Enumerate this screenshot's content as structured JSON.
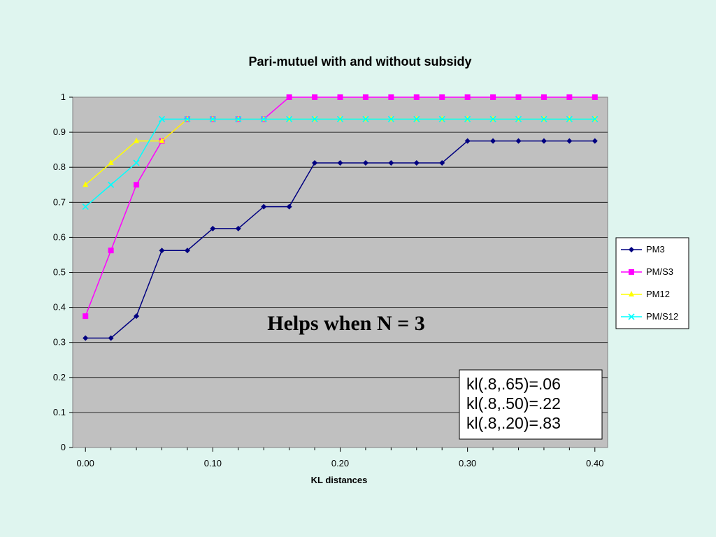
{
  "chart_data": {
    "type": "line",
    "title": "Pari-mutuel with and without subsidy",
    "xlabel": "KL distances",
    "ylabel": "",
    "x": [
      0,
      0.02,
      0.04,
      0.06,
      0.08,
      0.1,
      0.12,
      0.14,
      0.16,
      0.18,
      0.2,
      0.22,
      0.24,
      0.26,
      0.28,
      0.3,
      0.32,
      0.34,
      0.36,
      0.38,
      0.4
    ],
    "xlim": [
      -0.01,
      0.41
    ],
    "ylim": [
      0,
      1
    ],
    "xticks": [
      "0.00",
      "0.10",
      "0.20",
      "0.30",
      "0.40"
    ],
    "yticks": [
      "0",
      "0.1",
      "0.2",
      "0.3",
      "0.4",
      "0.5",
      "0.6",
      "0.7",
      "0.8",
      "0.9",
      "1"
    ],
    "grid": true,
    "plot_background": "#c0c0c0",
    "legend_position": "right",
    "series": [
      {
        "name": "PM3",
        "color": "#000080",
        "marker": "diamond",
        "values": [
          0.3125,
          0.3125,
          0.375,
          0.5625,
          0.5625,
          0.625,
          0.625,
          0.6875,
          0.6875,
          0.8125,
          0.8125,
          0.8125,
          0.8125,
          0.8125,
          0.8125,
          0.875,
          0.875,
          0.875,
          0.875,
          0.875,
          0.875
        ]
      },
      {
        "name": "PM/S3",
        "color": "#ff00ff",
        "marker": "square",
        "values": [
          0.375,
          0.5625,
          0.75,
          0.875,
          0.9375,
          0.9375,
          0.9375,
          0.9375,
          1,
          1,
          1,
          1,
          1,
          1,
          1,
          1,
          1,
          1,
          1,
          1,
          1
        ]
      },
      {
        "name": "PM12",
        "color": "#ffff00",
        "marker": "triangle",
        "values": [
          0.75,
          0.8125,
          0.875,
          0.875,
          0.9375,
          0.9375,
          0.9375,
          0.9375,
          0.9375,
          0.9375,
          0.9375,
          0.9375,
          0.9375,
          0.9375,
          0.9375,
          0.9375,
          0.9375,
          0.9375,
          0.9375,
          0.9375,
          0.9375
        ]
      },
      {
        "name": "PM/S12",
        "color": "#00ffff",
        "marker": "x",
        "values": [
          0.6875,
          0.75,
          0.8125,
          0.9375,
          0.9375,
          0.9375,
          0.9375,
          0.9375,
          0.9375,
          0.9375,
          0.9375,
          0.9375,
          0.9375,
          0.9375,
          0.9375,
          0.9375,
          0.9375,
          0.9375,
          0.9375,
          0.9375,
          0.9375
        ]
      }
    ],
    "annotation": "Helps when N = 3",
    "info_box": [
      "kl(.8,.65)=.06",
      "kl(.8,.50)=.22",
      "kl(.8,.20)=.83"
    ]
  }
}
